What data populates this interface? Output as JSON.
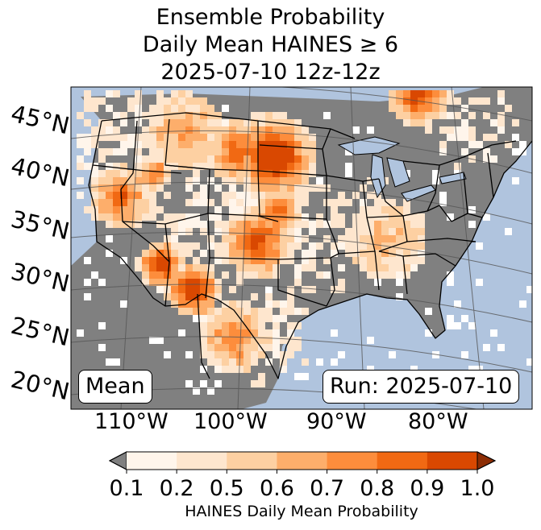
{
  "title": {
    "line1": "Ensemble Probability",
    "line2": "Daily Mean HAINES ≥ 6",
    "line3": "2025-07-10 12z-12z"
  },
  "map": {
    "lat_labels": [
      "45°N",
      "40°N",
      "35°N",
      "30°N",
      "25°N",
      "20°N"
    ],
    "lon_labels": [
      "110°W",
      "100°W",
      "90°W",
      "80°W"
    ],
    "stat_label": "Mean",
    "run_label": "Run: 2025-07-10",
    "colors": {
      "ocean": "#b0c4de",
      "below_threshold": "#808080",
      "no_data": "#ffffff",
      "boundaries": "#000000",
      "graticule": "#555555"
    }
  },
  "colorbar": {
    "label": "HAINES Daily Mean Probability",
    "ticks": [
      "0.1",
      "0.2",
      "0.5",
      "0.6",
      "0.7",
      "0.8",
      "0.9",
      "1.0"
    ],
    "bins": [
      {
        "range": "0.1-0.2",
        "color": "#fff5eb"
      },
      {
        "range": "0.2-0.5",
        "color": "#fee6ce"
      },
      {
        "range": "0.5-0.6",
        "color": "#fdd0a2"
      },
      {
        "range": "0.6-0.7",
        "color": "#fdae6b"
      },
      {
        "range": "0.7-0.8",
        "color": "#fd8d3c"
      },
      {
        "range": "0.8-0.9",
        "color": "#f16913"
      },
      {
        "range": "0.9-1.0",
        "color": "#d94801"
      }
    ],
    "under_color": "#808080",
    "over_color": "#8c2d04"
  }
}
